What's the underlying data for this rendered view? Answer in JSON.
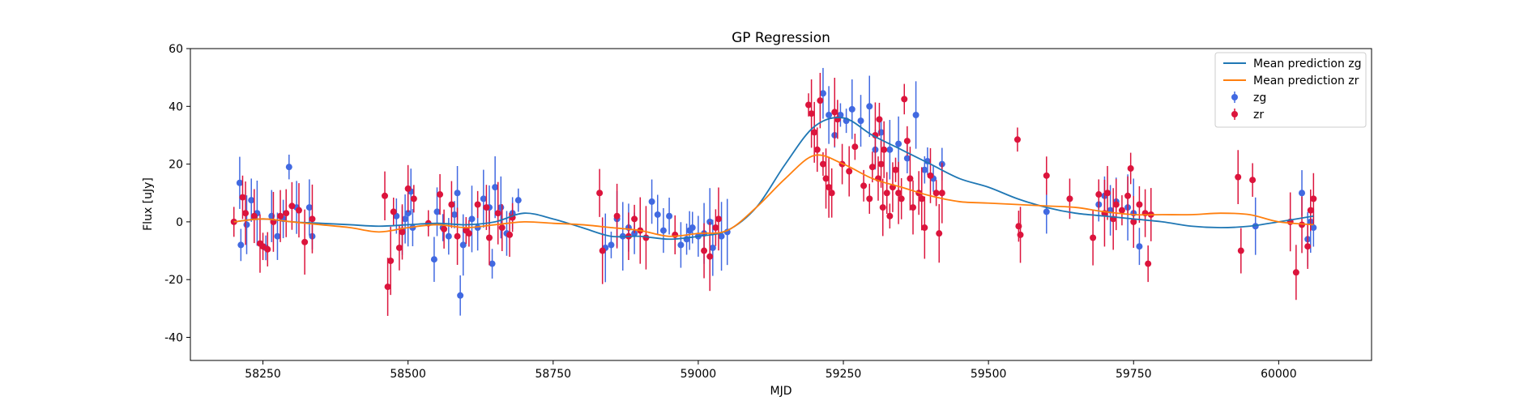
{
  "chart_data": {
    "type": "scatter",
    "title": "GP Regression",
    "xlabel": "MJD",
    "ylabel": "Flux [uJy]",
    "xlim": [
      58125,
      60160
    ],
    "ylim": [
      -48,
      60
    ],
    "x_ticks": [
      58250,
      58500,
      58750,
      59000,
      59250,
      59500,
      59750,
      60000
    ],
    "y_ticks": [
      -40,
      -20,
      0,
      20,
      40,
      60
    ],
    "grid": false,
    "legend_position": "top-right",
    "legend": [
      "Mean prediction zg",
      "Mean prediction zr",
      "zg",
      "zr"
    ],
    "lines": [
      {
        "name": "Mean prediction zg",
        "color": "#1f77b4",
        "x": [
          58200,
          58250,
          58300,
          58350,
          58400,
          58450,
          58500,
          58550,
          58600,
          58650,
          58700,
          58750,
          58800,
          58850,
          58900,
          58950,
          59000,
          59050,
          59100,
          59150,
          59200,
          59250,
          59300,
          59350,
          59400,
          59450,
          59500,
          59550,
          59600,
          59650,
          59700,
          59750,
          59800,
          59850,
          59900,
          59950,
          60000,
          60060
        ],
        "y": [
          0,
          1,
          0,
          -0.5,
          -1,
          -1.5,
          -1,
          -0.5,
          -1,
          0,
          3,
          1,
          -2,
          -5,
          -5,
          -6,
          -5,
          -3,
          5,
          20,
          33,
          36,
          30,
          25,
          20,
          15,
          12,
          8,
          5,
          3,
          2,
          1,
          0,
          -1.5,
          -2,
          -1.5,
          0,
          2
        ]
      },
      {
        "name": "Mean prediction zr",
        "color": "#ff7f0e",
        "x": [
          58200,
          58250,
          58300,
          58350,
          58400,
          58450,
          58500,
          58550,
          58600,
          58650,
          58700,
          58750,
          58800,
          58850,
          58900,
          58950,
          59000,
          59050,
          59100,
          59150,
          59200,
          59250,
          59300,
          59350,
          59400,
          59450,
          59500,
          59550,
          59600,
          59650,
          59700,
          59750,
          59800,
          59850,
          59900,
          59950,
          60000,
          60060
        ],
        "y": [
          0,
          1,
          0,
          -1,
          -2,
          -3.5,
          -2,
          -1,
          -2,
          -1,
          0,
          -0.5,
          -1,
          -2,
          -3,
          -5,
          -4,
          -3,
          5,
          15,
          23,
          20,
          15,
          12,
          9,
          7,
          6.5,
          6,
          5.5,
          5,
          3.5,
          2.5,
          2.5,
          2.5,
          3,
          2.5,
          0,
          -1
        ]
      }
    ],
    "series": [
      {
        "name": "zg",
        "color": "#4169e1",
        "x": [
          58210,
          58212,
          58222,
          58230,
          58240,
          58255,
          58265,
          58275,
          58285,
          58295,
          58308,
          58330,
          58335,
          58480,
          58490,
          58495,
          58500,
          58505,
          58508,
          58545,
          58550,
          58560,
          58570,
          58580,
          58585,
          58590,
          58595,
          58610,
          58620,
          58630,
          58640,
          58645,
          58650,
          58660,
          58670,
          58680,
          58690,
          58840,
          58850,
          58860,
          58870,
          58880,
          58890,
          58920,
          58930,
          58940,
          58950,
          58970,
          58980,
          58985,
          58990,
          59000,
          59010,
          59020,
          59025,
          59040,
          59050,
          59215,
          59225,
          59235,
          59245,
          59255,
          59265,
          59280,
          59295,
          59305,
          59315,
          59330,
          59345,
          59360,
          59375,
          59390,
          59395,
          59405,
          59420,
          59600,
          59690,
          59700,
          59710,
          59720,
          59740,
          59750,
          59760,
          59960,
          60040,
          60050,
          60055,
          60060
        ],
        "y": [
          13.5,
          -8,
          -1,
          7.5,
          3,
          -9,
          2,
          -5,
          1,
          19,
          5,
          5,
          -5,
          2,
          -3,
          1,
          3,
          10.5,
          -2,
          -13,
          3.5,
          -2,
          -5,
          2.5,
          10,
          -25.5,
          -8,
          1,
          -2,
          8,
          5,
          -14.5,
          12,
          5,
          -4,
          3,
          7.5,
          -9,
          -8,
          1,
          -5,
          -2,
          -4,
          7,
          2.5,
          -3,
          2,
          -8,
          -6,
          -3,
          -2,
          -5,
          -4,
          0,
          -9,
          -5,
          -3.5,
          44.5,
          37,
          30,
          37,
          35,
          39,
          35,
          40,
          25,
          31,
          25,
          27,
          22,
          37,
          18,
          21,
          15,
          20,
          3.5,
          6,
          9,
          4,
          7,
          5,
          3,
          -8.5,
          -1.5,
          10,
          -6,
          0,
          -2
        ]
      },
      {
        "name": "zr",
        "color": "#dc143c",
        "x": [
          58200,
          58215,
          58220,
          58235,
          58245,
          58250,
          58258,
          58268,
          58280,
          58290,
          58300,
          58312,
          58322,
          58335,
          58460,
          58465,
          58470,
          58475,
          58485,
          58490,
          58500,
          58510,
          58535,
          58555,
          58562,
          58575,
          58585,
          58600,
          58605,
          58620,
          58635,
          58640,
          58655,
          58662,
          58675,
          58680,
          58830,
          58835,
          58860,
          58880,
          58890,
          58900,
          58910,
          58960,
          59010,
          59020,
          59030,
          59035,
          59190,
          59195,
          59200,
          59205,
          59210,
          59215,
          59220,
          59225,
          59230,
          59235,
          59240,
          59248,
          59260,
          59270,
          59285,
          59295,
          59300,
          59305,
          59310,
          59312,
          59315,
          59318,
          59320,
          59325,
          59330,
          59335,
          59340,
          59345,
          59350,
          59355,
          59360,
          59365,
          59370,
          59380,
          59385,
          59390,
          59400,
          59410,
          59415,
          59420,
          59550,
          59552,
          59555,
          59600,
          59640,
          59680,
          59690,
          59700,
          59705,
          59715,
          59720,
          59730,
          59740,
          59745,
          59750,
          59760,
          59770,
          59775,
          59780,
          59930,
          59935,
          59955,
          60020,
          60030,
          60040,
          60050,
          60055,
          60060
        ],
        "y": [
          0,
          8.5,
          3,
          2,
          -7.5,
          -8.5,
          -9.5,
          0,
          2,
          3,
          5.5,
          4,
          -7,
          1,
          9,
          -22.5,
          -13.5,
          3.5,
          -9,
          -3.5,
          11.5,
          8,
          -0.5,
          9.5,
          -2.5,
          6,
          -5,
          -3,
          -4,
          6,
          5,
          -5.5,
          3,
          -2,
          -4.5,
          1.5,
          10,
          -10,
          2,
          -5,
          1,
          -3,
          -5.5,
          -4.5,
          -10,
          -12,
          -2,
          1,
          40.5,
          37.5,
          31,
          25,
          42,
          20,
          15,
          12,
          10,
          38,
          35.5,
          20,
          17.5,
          26,
          12.5,
          8,
          19,
          30,
          15,
          35.5,
          20,
          5,
          25,
          10,
          2,
          12,
          18,
          10,
          8,
          42.5,
          28,
          15,
          5,
          10,
          8,
          -2,
          16,
          10,
          -4,
          10,
          28.5,
          -1.5,
          -4.5,
          16,
          8,
          -5.5,
          9.5,
          3,
          10,
          1,
          6,
          4,
          9,
          18.5,
          0,
          6,
          3,
          -14.5,
          2.5,
          15.5,
          -10,
          14.5,
          0,
          -17.5,
          -1,
          -8.5,
          4,
          8
        ]
      }
    ]
  }
}
